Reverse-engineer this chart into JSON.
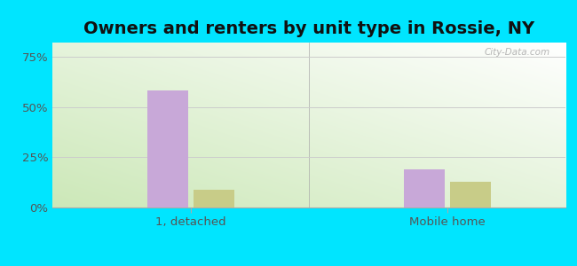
{
  "title": "Owners and renters by unit type in Rossie, NY",
  "categories": [
    "1, detached",
    "Mobile home"
  ],
  "owner_values": [
    58,
    19
  ],
  "renter_values": [
    9,
    13
  ],
  "owner_color": "#c8a8d8",
  "renter_color": "#c8cc88",
  "yticks": [
    0,
    25,
    50,
    75
  ],
  "ytick_labels": [
    "0%",
    "25%",
    "50%",
    "75%"
  ],
  "ylim": [
    0,
    82
  ],
  "bar_width": 0.08,
  "group_centers": [
    0.27,
    0.77
  ],
  "bg_outer": "#00e5ff",
  "bg_plot_bottom_left": "#cce8b8",
  "bg_plot_top_right": "#ffffff",
  "watermark": "City-Data.com",
  "title_fontsize": 14,
  "axis_fontsize": 9.5
}
